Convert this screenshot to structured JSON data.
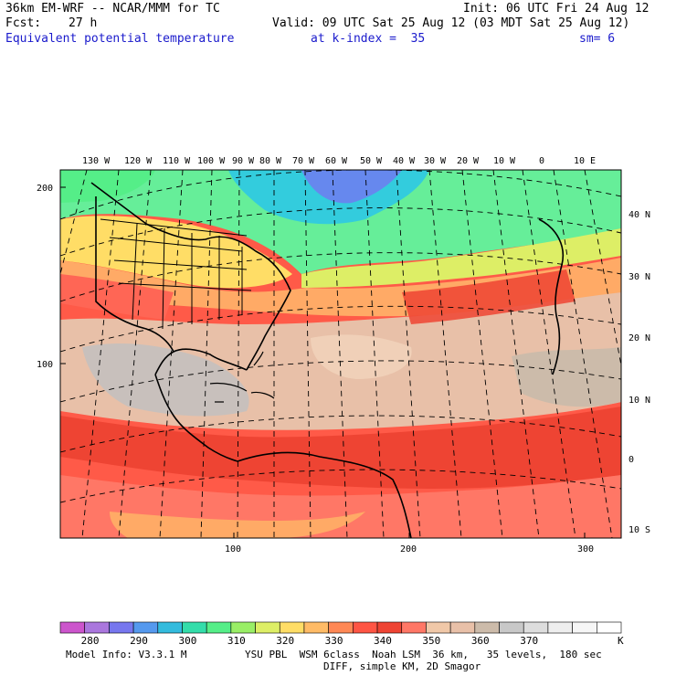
{
  "header": {
    "model": "36km EM-WRF -- NCAR/MMM for TC",
    "init": "Init: 06 UTC Fri 24 Aug 12",
    "fcst_label": "Fcst:",
    "fcst_value": "27 h",
    "valid": "Valid: 09 UTC Sat 25 Aug 12 (03 MDT Sat 25 Aug 12)",
    "field": "Equivalent potential temperature",
    "level": "at k-index =  35",
    "smooth": "sm= 6"
  },
  "map": {
    "lon_labels": [
      "130 W",
      "120 W",
      "110 W",
      "100 W",
      "90 W",
      "80 W",
      "70 W",
      "60 W",
      "50 W",
      "40 W",
      "30 W",
      "20 W",
      "10 W",
      "0",
      "10 E"
    ],
    "lat_labels": [
      "40 N",
      "30 N",
      "20 N",
      "10 N",
      "0",
      "10 S"
    ],
    "grid_y_labels": [
      "200",
      "100"
    ],
    "grid_x_labels": [
      "100",
      "200",
      "300"
    ]
  },
  "colorbar": {
    "labels": [
      "280",
      "290",
      "300",
      "310",
      "320",
      "330",
      "340",
      "350",
      "360",
      "370"
    ],
    "unit": "K",
    "colors": [
      "#cc55cc",
      "#aa77dd",
      "#7777ee",
      "#5599ee",
      "#33bbdd",
      "#33ddaa",
      "#55ee88",
      "#99ee66",
      "#ddee66",
      "#ffdd66",
      "#ffbb66",
      "#ff8855",
      "#ff5544",
      "#ee4433",
      "#ff7766",
      "#f0c8a8",
      "#e8c0a8",
      "#ccbbaa",
      "#c8c8c8",
      "#dddddd",
      "#eeeeee",
      "#f6f6f6",
      "#ffffff"
    ]
  },
  "footer": {
    "info": "Model Info: V3.3.1 M",
    "physics": "YSU PBL  WSM 6class  Noah LSM  36 km,   35 levels,  180 sec",
    "diff": "DIFF, simple KM, 2D Smagor"
  }
}
